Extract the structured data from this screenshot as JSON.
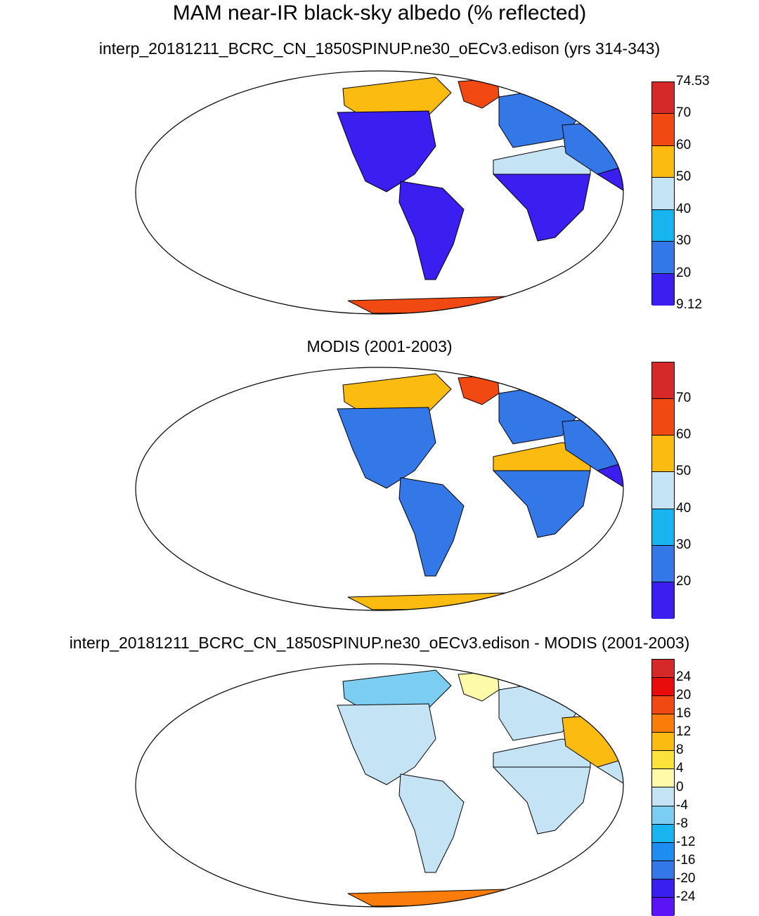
{
  "title": "MAM near-IR black-sky albedo (% reflected)",
  "panels": [
    {
      "subtitle": "interp_20181211_BCRC_CN_1850SPINUP.ne30_oECv3.edison (yrs 314-343)",
      "colorbar": {
        "colors": [
          "#d62828",
          "#f04a12",
          "#fbbb10",
          "#c4e4f6",
          "#18b4f0",
          "#3477e6",
          "#3b1ef0"
        ],
        "labels": [
          "74.53",
          "70",
          "60",
          "50",
          "40",
          "30",
          "20",
          "9.12"
        ]
      },
      "regions": {
        "greenland": "#f04a12",
        "canada_north": "#fbbb10",
        "north_america": "#3b1ef0",
        "south_america": "#3b1ef0",
        "sahara": "#c4e4f6",
        "africa": "#3b1ef0",
        "europe": "#3477e6",
        "siberia": "#18b4f0",
        "central_asia": "#3477e6",
        "south_asia": "#3b1ef0",
        "australia": "#3477e6",
        "antarctica": "#f04a12"
      }
    },
    {
      "subtitle": "MODIS (2001-2003)",
      "colorbar": {
        "colors": [
          "#d62828",
          "#f04a12",
          "#fbbb10",
          "#c4e4f6",
          "#18b4f0",
          "#3477e6",
          "#3b1ef0"
        ],
        "labels": [
          "70",
          "60",
          "50",
          "40",
          "30",
          "20"
        ]
      },
      "regions": {
        "greenland": "#f04a12",
        "canada_north": "#fbbb10",
        "north_america": "#3477e6",
        "south_america": "#3477e6",
        "sahara": "#fbbb10",
        "africa": "#3477e6",
        "europe": "#3477e6",
        "siberia": "#3477e6",
        "central_asia": "#3477e6",
        "south_asia": "#3b1ef0",
        "australia": "#3477e6",
        "antarctica": "#fbbb10"
      }
    },
    {
      "subtitle": "interp_20181211_BCRC_CN_1850SPINUP.ne30_oECv3.edison - MODIS (2001-2003)",
      "colorbar": {
        "colors": [
          "#d62828",
          "#e80c0c",
          "#f04a12",
          "#fa7c0a",
          "#fbbb10",
          "#fee23c",
          "#fdfbaa",
          "#c4e4f6",
          "#7ccdf2",
          "#18b4f0",
          "#1e8cf0",
          "#3477e6",
          "#3b1ef0",
          "#5a14f6"
        ],
        "labels": [
          "24",
          "20",
          "16",
          "12",
          "8",
          "4",
          "0",
          "-4",
          "-8",
          "-12",
          "-16",
          "-20",
          "-24"
        ]
      },
      "regions": {
        "greenland": "#fdfbaa",
        "canada_north": "#7ccdf2",
        "north_america": "#c4e4f6",
        "south_america": "#c4e4f6",
        "sahara": "#c4e4f6",
        "africa": "#c4e4f6",
        "europe": "#c4e4f6",
        "siberia": "#fee23c",
        "central_asia": "#fbbb10",
        "south_asia": "#c4e4f6",
        "australia": "#c4e4f6",
        "antarctica": "#fa7c0a"
      }
    }
  ]
}
